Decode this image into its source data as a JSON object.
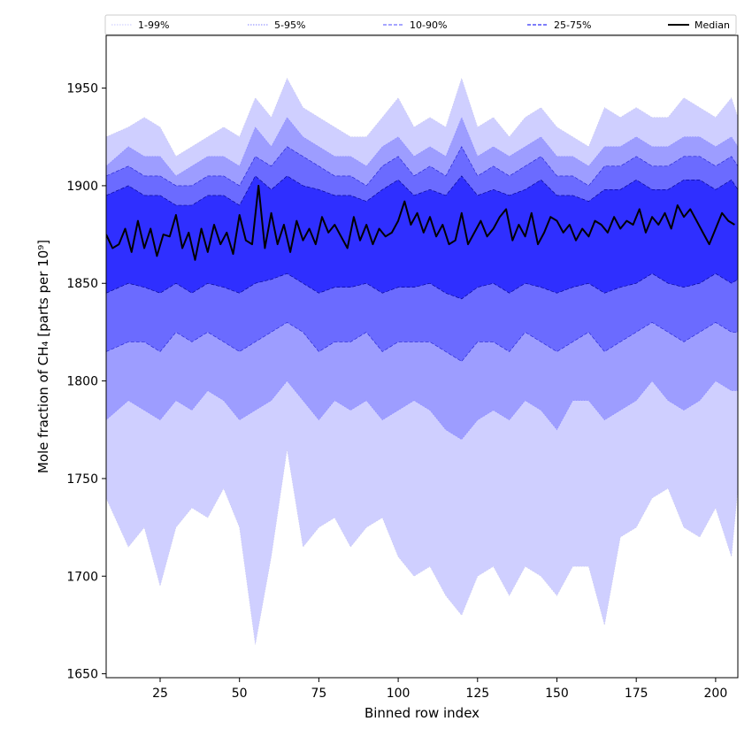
{
  "chart_data": {
    "type": "area",
    "xlabel": "Binned row index",
    "ylabel": "Mole fraction of CH₄ [parts per 10⁹]",
    "xlim": [
      8,
      207
    ],
    "ylim": [
      1648,
      1977
    ],
    "x_ticks": [
      25,
      50,
      75,
      100,
      125,
      150,
      175,
      200
    ],
    "y_ticks": [
      1650,
      1700,
      1750,
      1800,
      1850,
      1900,
      1950
    ],
    "grid": false,
    "legend_position": "top",
    "legend": [
      {
        "label": "1-99%",
        "color": "#d2d2ff",
        "style": "dotted"
      },
      {
        "label": "5-95%",
        "color": "#9b9bff",
        "style": "dotted"
      },
      {
        "label": "10-90%",
        "color": "#7070ff",
        "style": "dashed"
      },
      {
        "label": "25-75%",
        "color": "#3030f5",
        "style": "dashed"
      },
      {
        "label": "Median",
        "color": "#000000",
        "style": "solid"
      }
    ],
    "x_knots": [
      8,
      15,
      20,
      25,
      30,
      35,
      40,
      45,
      50,
      55,
      60,
      65,
      70,
      75,
      80,
      85,
      90,
      95,
      100,
      105,
      110,
      115,
      120,
      125,
      130,
      135,
      140,
      145,
      150,
      155,
      160,
      165,
      170,
      175,
      180,
      185,
      190,
      195,
      200,
      205,
      207
    ],
    "bands": [
      {
        "name": "1-99%",
        "color": "#cfcfff",
        "line_color": "#c8c8f0",
        "low": [
          1740,
          1715,
          1725,
          1695,
          1725,
          1735,
          1730,
          1745,
          1725,
          1665,
          1710,
          1765,
          1715,
          1725,
          1730,
          1715,
          1725,
          1730,
          1710,
          1700,
          1705,
          1690,
          1680,
          1700,
          1705,
          1690,
          1705,
          1700,
          1690,
          1705,
          1705,
          1675,
          1720,
          1725,
          1740,
          1745,
          1725,
          1720,
          1735,
          1710,
          1745
        ],
        "high": [
          1925,
          1930,
          1935,
          1930,
          1915,
          1920,
          1925,
          1930,
          1925,
          1945,
          1935,
          1955,
          1940,
          1935,
          1930,
          1925,
          1925,
          1935,
          1945,
          1930,
          1935,
          1930,
          1955,
          1930,
          1935,
          1925,
          1935,
          1940,
          1930,
          1925,
          1920,
          1940,
          1935,
          1940,
          1935,
          1935,
          1945,
          1940,
          1935,
          1945,
          1935
        ]
      },
      {
        "name": "5-95%",
        "color": "#9d9dff",
        "line_color": "#8a8aff",
        "low": [
          1780,
          1790,
          1785,
          1780,
          1790,
          1785,
          1795,
          1790,
          1780,
          1785,
          1790,
          1800,
          1790,
          1780,
          1790,
          1785,
          1790,
          1780,
          1785,
          1790,
          1785,
          1775,
          1770,
          1780,
          1785,
          1780,
          1790,
          1785,
          1775,
          1790,
          1790,
          1780,
          1785,
          1790,
          1800,
          1790,
          1785,
          1790,
          1800,
          1795,
          1795
        ],
        "high": [
          1910,
          1920,
          1915,
          1915,
          1905,
          1910,
          1915,
          1915,
          1910,
          1930,
          1920,
          1935,
          1925,
          1920,
          1915,
          1915,
          1910,
          1920,
          1925,
          1915,
          1920,
          1915,
          1935,
          1915,
          1920,
          1915,
          1920,
          1925,
          1915,
          1915,
          1910,
          1920,
          1920,
          1925,
          1920,
          1920,
          1925,
          1925,
          1920,
          1925,
          1920
        ]
      },
      {
        "name": "10-90%",
        "color": "#6b6bff",
        "line_color": "#2020d0",
        "low": [
          1815,
          1820,
          1820,
          1815,
          1825,
          1820,
          1825,
          1820,
          1815,
          1820,
          1825,
          1830,
          1825,
          1815,
          1820,
          1820,
          1825,
          1815,
          1820,
          1820,
          1820,
          1815,
          1810,
          1820,
          1820,
          1815,
          1825,
          1820,
          1815,
          1820,
          1825,
          1815,
          1820,
          1825,
          1830,
          1825,
          1820,
          1825,
          1830,
          1825,
          1825
        ],
        "high": [
          1905,
          1910,
          1905,
          1905,
          1900,
          1900,
          1905,
          1905,
          1900,
          1915,
          1910,
          1920,
          1915,
          1910,
          1905,
          1905,
          1900,
          1910,
          1915,
          1905,
          1910,
          1905,
          1920,
          1905,
          1910,
          1905,
          1910,
          1915,
          1905,
          1905,
          1900,
          1910,
          1910,
          1915,
          1910,
          1910,
          1915,
          1915,
          1910,
          1915,
          1910
        ]
      },
      {
        "name": "25-75%",
        "color": "#2f2fff",
        "line_color": "#00008b",
        "low": [
          1845,
          1850,
          1848,
          1845,
          1850,
          1845,
          1850,
          1848,
          1845,
          1850,
          1852,
          1855,
          1850,
          1845,
          1848,
          1848,
          1850,
          1845,
          1848,
          1848,
          1850,
          1845,
          1842,
          1848,
          1850,
          1845,
          1850,
          1848,
          1845,
          1848,
          1850,
          1845,
          1848,
          1850,
          1855,
          1850,
          1848,
          1850,
          1855,
          1850,
          1852
        ],
        "high": [
          1895,
          1900,
          1895,
          1895,
          1890,
          1890,
          1895,
          1895,
          1890,
          1905,
          1898,
          1905,
          1900,
          1898,
          1895,
          1895,
          1892,
          1898,
          1903,
          1895,
          1898,
          1895,
          1905,
          1895,
          1898,
          1895,
          1898,
          1903,
          1895,
          1895,
          1892,
          1898,
          1898,
          1903,
          1898,
          1898,
          1903,
          1903,
          1898,
          1903,
          1898
        ]
      }
    ],
    "series": [
      {
        "name": "Median",
        "color": "#000000",
        "x": [
          8,
          10,
          12,
          14,
          16,
          18,
          20,
          22,
          24,
          26,
          28,
          30,
          32,
          34,
          36,
          38,
          40,
          42,
          44,
          46,
          48,
          50,
          52,
          54,
          56,
          58,
          60,
          62,
          64,
          66,
          68,
          70,
          72,
          74,
          76,
          78,
          80,
          82,
          84,
          86,
          88,
          90,
          92,
          94,
          96,
          98,
          100,
          102,
          104,
          106,
          108,
          110,
          112,
          114,
          116,
          118,
          120,
          122,
          124,
          126,
          128,
          130,
          132,
          134,
          136,
          138,
          140,
          142,
          144,
          146,
          148,
          150,
          152,
          154,
          156,
          158,
          160,
          162,
          164,
          166,
          168,
          170,
          172,
          174,
          176,
          178,
          180,
          182,
          184,
          186,
          188,
          190,
          192,
          194,
          196,
          198,
          200,
          202,
          204,
          206
        ],
        "y": [
          1875,
          1868,
          1870,
          1878,
          1866,
          1882,
          1868,
          1878,
          1864,
          1875,
          1874,
          1885,
          1868,
          1876,
          1862,
          1878,
          1866,
          1880,
          1870,
          1876,
          1865,
          1885,
          1872,
          1870,
          1900,
          1868,
          1886,
          1870,
          1880,
          1866,
          1882,
          1872,
          1878,
          1870,
          1884,
          1876,
          1880,
          1874,
          1868,
          1884,
          1872,
          1880,
          1870,
          1878,
          1874,
          1876,
          1882,
          1892,
          1880,
          1886,
          1876,
          1884,
          1874,
          1880,
          1870,
          1872,
          1886,
          1870,
          1876,
          1882,
          1874,
          1878,
          1884,
          1888,
          1872,
          1880,
          1874,
          1886,
          1870,
          1876,
          1884,
          1882,
          1876,
          1880,
          1872,
          1878,
          1874,
          1882,
          1880,
          1876,
          1884,
          1878,
          1882,
          1880,
          1888,
          1876,
          1884,
          1880,
          1886,
          1878,
          1890,
          1884,
          1888,
          1882,
          1876,
          1870,
          1878,
          1886,
          1882,
          1880
        ]
      }
    ]
  }
}
